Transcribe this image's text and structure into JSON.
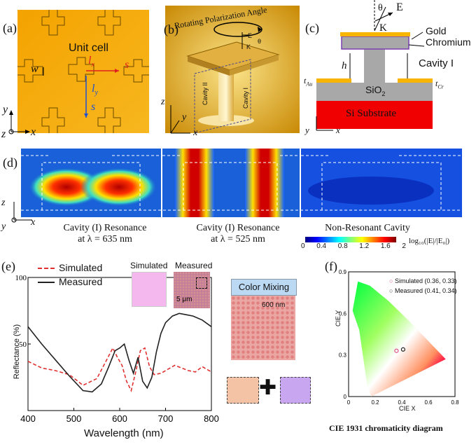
{
  "panel_a": {
    "label": "(a)",
    "title": "Unit cell",
    "w": "w",
    "lx": "l",
    "lx_sub": "x",
    "ly": "l",
    "ly_sub": "y",
    "s1": "s",
    "s2": "s",
    "ax_y": "y",
    "ax_z": "z",
    "ax_x": "x"
  },
  "panel_b": {
    "label": "(b)",
    "title": "Rotating Polarization Angle",
    "e": "E",
    "k": "K",
    "theta": "θ",
    "cav1": "Cavity I",
    "cav2": "Cavity II",
    "ax_z": "z",
    "ax_y": "y",
    "ax_x": "x"
  },
  "panel_c": {
    "label": "(c)",
    "theta": "θ",
    "e": "E",
    "k": "K",
    "gold": "Gold",
    "chromium": "Chromium",
    "cavity": "Cavity I",
    "h": "h",
    "tau": "t",
    "tau_sub": "Au",
    "tcr": "t",
    "tcr_sub": "Cr",
    "sio2": "SiO",
    "sio2_sub": "2",
    "substrate": "Si Substrate",
    "ax_y": "y",
    "ax_x": "x"
  },
  "panel_d": {
    "label": "(d)",
    "ax_z": "z",
    "ax_y": "y",
    "ax_x": "x",
    "captions": [
      {
        "line1": "Cavity (I) Resonance",
        "line2": "at λ = 635 nm"
      },
      {
        "line1": "Cavity (I) Resonance",
        "line2": "at λ = 525 nm"
      },
      {
        "line1": "Non-Resonant Cavity",
        "line2": ""
      }
    ],
    "colorbar": {
      "ticks": [
        "0",
        "0.4",
        "0.8",
        "1.2",
        "1.6",
        "2"
      ],
      "label": "log₁₀(|E|/|E₀|)",
      "colors": [
        "#00007f",
        "#0000ff",
        "#007fff",
        "#00ffff",
        "#7fff7f",
        "#ffff00",
        "#ff7f00",
        "#ff0000",
        "#7f0000"
      ]
    }
  },
  "panel_e": {
    "label": "(e)",
    "legend": {
      "simulated": "Simulated",
      "measured": "Measured"
    },
    "inset": {
      "simulated": "Simulated",
      "measured": "Measured",
      "scale": "5 μm"
    },
    "mixing": {
      "title": "Color Mixing",
      "scale": "600 nm",
      "plus": "✚"
    },
    "colors": {
      "simulated_swatch": "#f4b8ee",
      "mix1": "#f4c3a6",
      "mix2": "#c8a6f0"
    },
    "chart_data": {
      "type": "line",
      "xlabel": "Wavelength (nm)",
      "ylabel": "Reflectance (%)",
      "xlim": [
        400,
        800
      ],
      "ylim": [
        0,
        100
      ],
      "xticks": [
        "400",
        "500",
        "600",
        "700",
        "800"
      ],
      "yticks": [
        "100",
        "50"
      ],
      "series": [
        {
          "name": "Simulated",
          "style": "dashed",
          "color": "#e03030",
          "x": [
            400,
            430,
            460,
            490,
            520,
            550,
            570,
            585,
            595,
            605,
            615,
            625,
            635,
            645,
            655,
            665,
            675,
            690,
            705,
            720,
            735,
            750,
            765,
            780,
            800
          ],
          "y": [
            37,
            32,
            30,
            27,
            19,
            24,
            37,
            47,
            40,
            34,
            22,
            15,
            29,
            45,
            47,
            33,
            27,
            28,
            31,
            34,
            32,
            30,
            29,
            33,
            29
          ]
        },
        {
          "name": "Measured",
          "style": "solid",
          "color": "#222222",
          "x": [
            400,
            430,
            460,
            490,
            520,
            540,
            560,
            575,
            590,
            600,
            610,
            620,
            630,
            640,
            650,
            660,
            670,
            680,
            690,
            700,
            715,
            730,
            745,
            760,
            780,
            800
          ],
          "y": [
            63,
            50,
            38,
            26,
            15,
            14,
            20,
            32,
            45,
            47,
            50,
            38,
            28,
            40,
            22,
            17,
            25,
            44,
            58,
            66,
            71,
            73,
            72,
            71,
            68,
            63
          ]
        }
      ]
    }
  },
  "panel_f": {
    "label": "(f)",
    "legend": [
      {
        "name": "Simulated (0.36, 0.33)",
        "color": "#e0508a"
      },
      {
        "name": "Measured (0.41, 0.34)",
        "color": "#333333"
      }
    ],
    "caption": "CIE 1931 chromaticity diagram",
    "chart_data": {
      "type": "scatter",
      "xlabel": "CIE X",
      "ylabel": "CIE Y",
      "xlim": [
        0,
        0.8
      ],
      "ylim": [
        0,
        0.9
      ],
      "xticks": [
        "0",
        "0.2",
        "0.4",
        "0.6",
        "0.8"
      ],
      "yticks": [
        "0",
        "0.3",
        "0.6",
        "0.9"
      ],
      "series": [
        {
          "name": "Simulated (0.36, 0.33)",
          "x": [
            0.36
          ],
          "y": [
            0.33
          ]
        },
        {
          "name": "Measured (0.41, 0.34)",
          "x": [
            0.41
          ],
          "y": [
            0.34
          ]
        }
      ]
    }
  }
}
